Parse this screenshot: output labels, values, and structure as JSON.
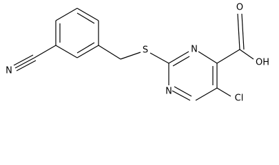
{
  "molecule": {
    "atoms": {
      "nitrile_n": "N",
      "s": "S",
      "n3": "N",
      "n1": "N",
      "oh": "OH",
      "o": "O",
      "cl": "Cl"
    }
  }
}
